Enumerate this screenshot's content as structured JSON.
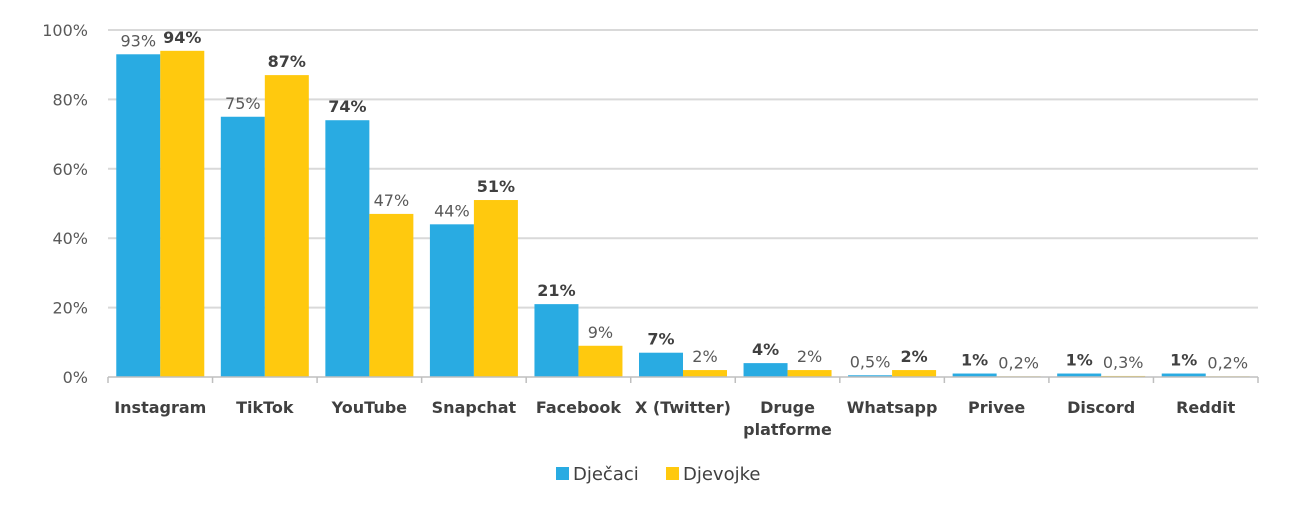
{
  "chart_data": {
    "type": "bar",
    "categories": [
      [
        "Instagram"
      ],
      [
        "TikTok"
      ],
      [
        "YouTube"
      ],
      [
        "Snapchat"
      ],
      [
        "Facebook"
      ],
      [
        "X (Twitter)"
      ],
      [
        "Druge",
        "platforme"
      ],
      [
        "Whatsapp"
      ],
      [
        "Privee"
      ],
      [
        "Discord"
      ],
      [
        "Reddit"
      ]
    ],
    "series": [
      {
        "name": "Dječaci",
        "color": "#29abe2",
        "values": [
          93,
          75,
          74,
          44,
          21,
          7,
          4,
          0.5,
          1,
          1,
          1
        ],
        "labels": [
          "93%",
          "75%",
          "74%",
          "44%",
          "21%",
          "7%",
          "4%",
          "0,5%",
          "1%",
          "1%",
          "1%"
        ],
        "bold": [
          false,
          false,
          true,
          false,
          true,
          true,
          true,
          false,
          true,
          true,
          true
        ]
      },
      {
        "name": "Djevojke",
        "color": "#ffc90e",
        "values": [
          94,
          87,
          47,
          51,
          9,
          2,
          2,
          2,
          0.2,
          0.3,
          0.2
        ],
        "labels": [
          "94%",
          "87%",
          "47%",
          "51%",
          "9%",
          "2%",
          "2%",
          "2%",
          "0,2%",
          "0,3%",
          "0,2%"
        ],
        "bold": [
          true,
          true,
          false,
          true,
          false,
          false,
          false,
          true,
          false,
          false,
          false
        ]
      }
    ],
    "ylim": [
      0,
      100
    ],
    "yticks": [
      0,
      20,
      40,
      60,
      80,
      100
    ],
    "ytick_labels": [
      "0%",
      "20%",
      "40%",
      "60%",
      "80%",
      "100%"
    ],
    "grid": true,
    "legend_position": "bottom",
    "title": "",
    "xlabel": "",
    "ylabel": ""
  }
}
